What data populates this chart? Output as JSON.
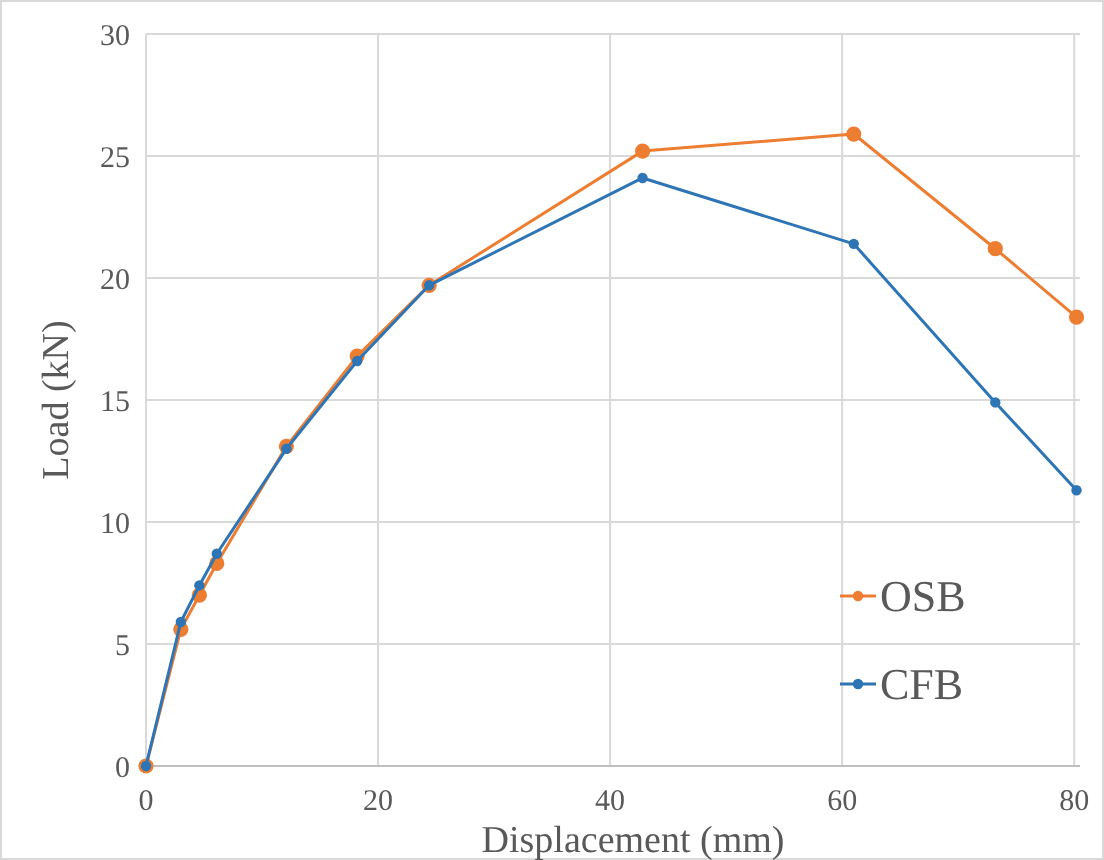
{
  "chart_data": {
    "type": "line",
    "xlabel": "Displacement (mm)",
    "ylabel": "Load (kN)",
    "xlim": [
      0,
      80.5
    ],
    "xticks": [
      0,
      20,
      40,
      60,
      80
    ],
    "ylim": [
      0,
      30
    ],
    "yticks": [
      0,
      5,
      10,
      15,
      20,
      25,
      30
    ],
    "grid": true,
    "legend": "bottom right",
    "marker": "circle",
    "line_style": "solid",
    "series": [
      {
        "name": "OSB",
        "color": "#ed7d31",
        "x": [
          0,
          3,
          4.6,
          6.1,
          12.1,
          18.2,
          24.4,
          42.8,
          61,
          73.2,
          80.2
        ],
        "values": [
          0,
          5.6,
          7.0,
          8.3,
          13.1,
          16.8,
          19.7,
          25.2,
          25.9,
          21.2,
          18.4
        ]
      },
      {
        "name": "CFB",
        "color": "#2e75b6",
        "x": [
          0,
          3,
          4.6,
          6.1,
          12.1,
          18.2,
          24.4,
          42.8,
          61,
          73.2,
          80.2
        ],
        "values": [
          0,
          5.9,
          7.4,
          8.7,
          13.0,
          16.6,
          19.7,
          24.1,
          21.4,
          14.9,
          11.3
        ]
      }
    ]
  }
}
